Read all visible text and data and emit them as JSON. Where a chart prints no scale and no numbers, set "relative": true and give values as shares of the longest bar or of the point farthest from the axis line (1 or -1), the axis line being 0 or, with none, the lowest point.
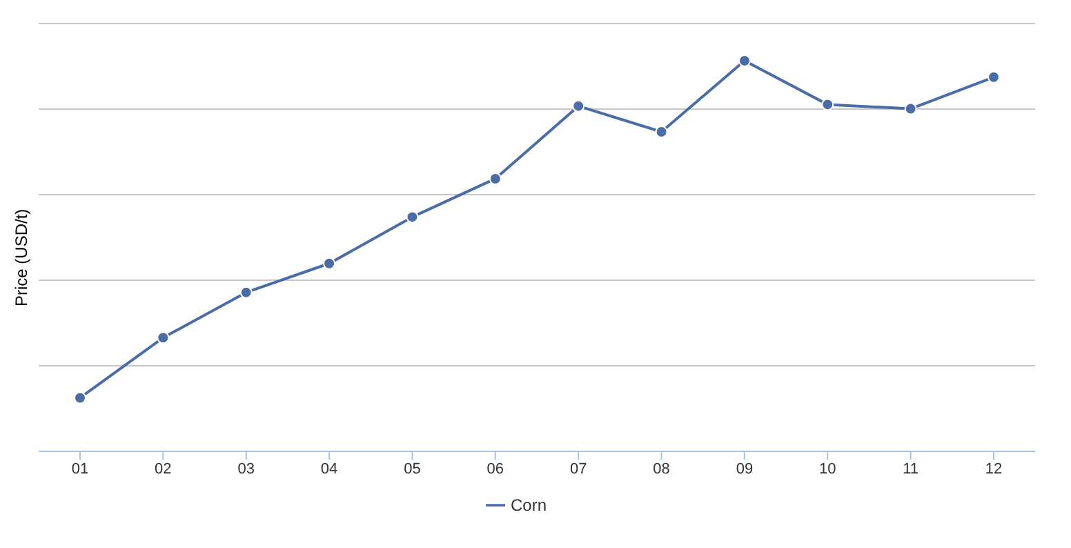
{
  "chart_data": {
    "type": "line",
    "relative": true,
    "ylabel": "Price (USD/t)",
    "categories": [
      "01",
      "02",
      "03",
      "04",
      "05",
      "06",
      "07",
      "08",
      "09",
      "10",
      "11",
      "12"
    ],
    "series": [
      {
        "name": "Corn",
        "color": "#4a6da7",
        "values": [
          0.137,
          0.291,
          0.407,
          0.481,
          0.6,
          0.698,
          0.884,
          0.818,
          1,
          0.888,
          0.877,
          0.958
        ]
      }
    ],
    "grid": "y",
    "legend": "bottom",
    "marker": "circle",
    "line_style": "solid"
  }
}
